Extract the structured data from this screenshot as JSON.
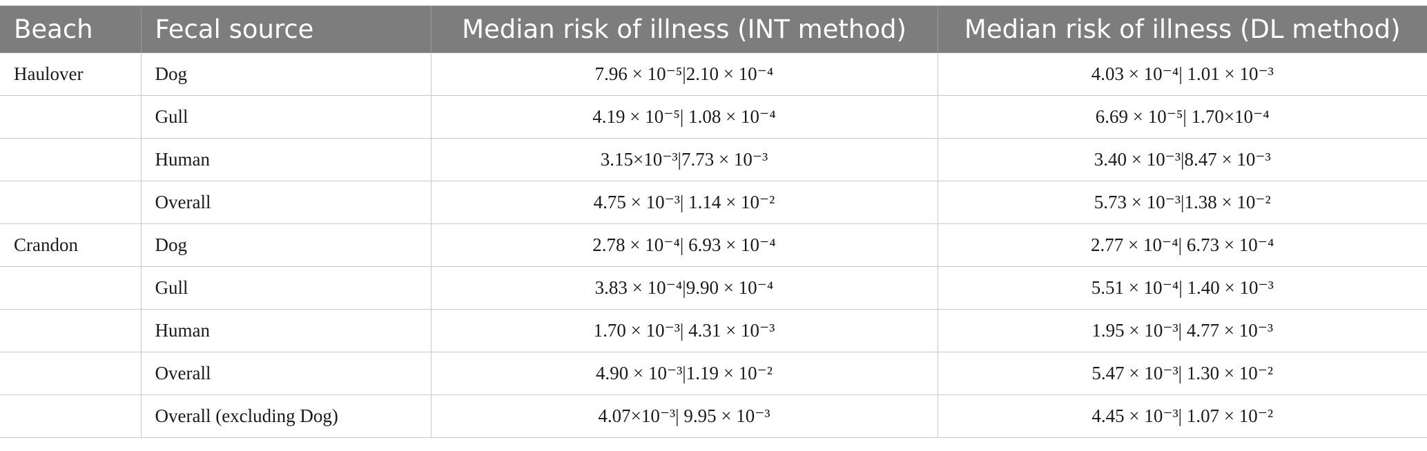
{
  "table": {
    "headers": [
      "Beach",
      "Fecal source",
      "Median risk of illness (INT method)",
      "Median risk of illness (DL method)"
    ],
    "rows": [
      [
        "Haulover",
        "Dog",
        "7.96 × 10⁻⁵|2.10 × 10⁻⁴",
        "4.03 × 10⁻⁴| 1.01 × 10⁻³"
      ],
      [
        "",
        "Gull",
        "4.19 × 10⁻⁵| 1.08 × 10⁻⁴",
        "6.69 × 10⁻⁵| 1.70×10⁻⁴"
      ],
      [
        "",
        "Human",
        "3.15×10⁻³|7.73 × 10⁻³",
        "3.40 × 10⁻³|8.47 × 10⁻³"
      ],
      [
        "",
        "Overall",
        "4.75 × 10⁻³| 1.14 × 10⁻²",
        "5.73 × 10⁻³|1.38 × 10⁻²"
      ],
      [
        "Crandon",
        "Dog",
        "2.78 × 10⁻⁴| 6.93 × 10⁻⁴",
        "2.77 × 10⁻⁴| 6.73 × 10⁻⁴"
      ],
      [
        "",
        "Gull",
        "3.83 × 10⁻⁴|9.90 × 10⁻⁴",
        "5.51 × 10⁻⁴| 1.40 × 10⁻³"
      ],
      [
        "",
        "Human",
        "1.70 × 10⁻³| 4.31 × 10⁻³",
        "1.95 × 10⁻³| 4.77 × 10⁻³"
      ],
      [
        "",
        "Overall",
        "4.90 × 10⁻³|1.19 × 10⁻²",
        "5.47 × 10⁻³| 1.30 × 10⁻²"
      ],
      [
        "",
        "Overall (excluding Dog)",
        "4.07×10⁻³| 9.95 × 10⁻³",
        "4.45 × 10⁻³| 1.07 × 10⁻²"
      ]
    ]
  }
}
